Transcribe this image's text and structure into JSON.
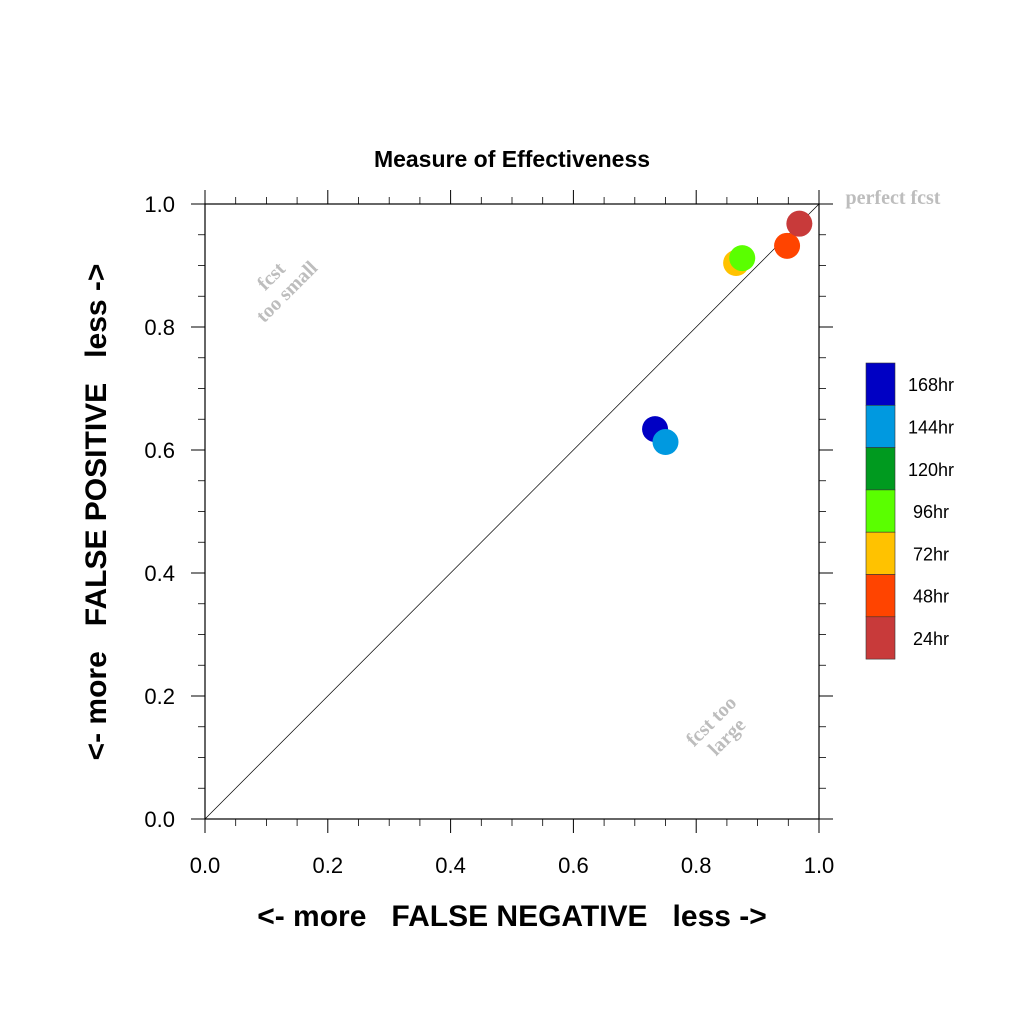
{
  "chart_data": {
    "type": "scatter",
    "title": "Measure of Effectiveness",
    "xlabel": "<- more   FALSE NEGATIVE   less ->",
    "ylabel": "<- more   FALSE POSITIVE   less ->",
    "xlim": [
      0.0,
      1.0
    ],
    "ylim": [
      0.0,
      1.0
    ],
    "xticks": [
      "0.0",
      "0.2",
      "0.4",
      "0.6",
      "0.8",
      "1.0"
    ],
    "yticks": [
      "0.0",
      "0.2",
      "0.4",
      "0.6",
      "0.8",
      "1.0"
    ],
    "grid": false,
    "diagonal_line": true,
    "annotations": {
      "top_right": "perfect fcst",
      "upper_left_line1": "fcst",
      "upper_left_line2": "too small",
      "lower_right_line1": "fcst too",
      "lower_right_line2": "large"
    },
    "legend_position": "right",
    "series": [
      {
        "name": "168hr",
        "color": "#0000c4",
        "x": 0.733,
        "y": 0.634
      },
      {
        "name": "144hr",
        "color": "#0099e0",
        "x": 0.75,
        "y": 0.613
      },
      {
        "name": "120hr",
        "color": "#009a1f",
        "x": null,
        "y": null
      },
      {
        "name": "96hr",
        "color": "#5aff00",
        "x": 0.875,
        "y": 0.912
      },
      {
        "name": "72hr",
        "color": "#ffc200",
        "x": 0.865,
        "y": 0.904
      },
      {
        "name": "48hr",
        "color": "#ff4400",
        "x": 0.948,
        "y": 0.932
      },
      {
        "name": "24hr",
        "color": "#c83a3a",
        "x": 0.968,
        "y": 0.968
      }
    ]
  }
}
